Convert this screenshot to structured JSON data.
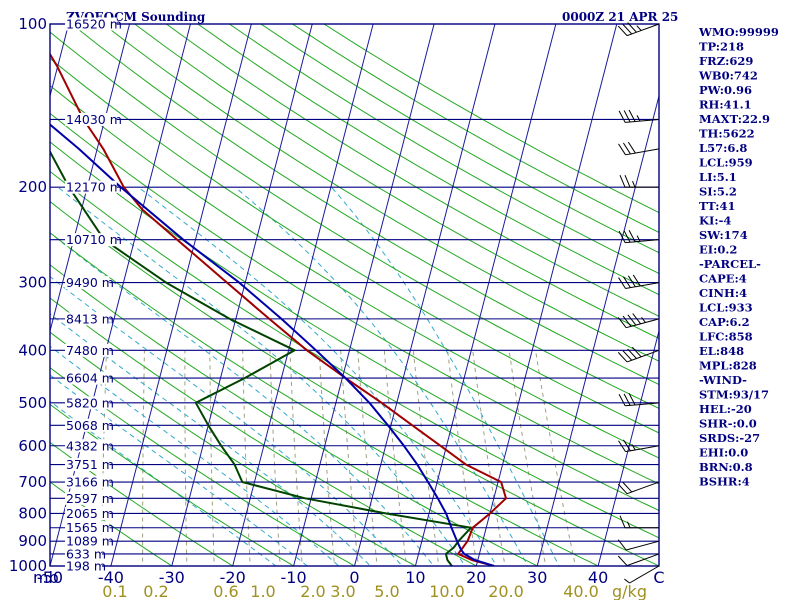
{
  "title_left": "ZVQEQCM Sounding",
  "title_right": "0000Z 21 APR 25",
  "mb_label": "mb",
  "gkg_label": "g/kg",
  "colors": {
    "frame": "#000080",
    "isobar": "#000080",
    "isotherm": "#1a1a9a",
    "dry_adiabat": "#22aa22",
    "moist_adiabat": "#33aacc",
    "mixing_ratio": "#a0a080",
    "temperature": "#a00000",
    "dewpoint": "#004400",
    "parcel": "#0000aa",
    "wind_barb": "#000000",
    "label_text": "#000080",
    "mixing_label_text": "#a09020"
  },
  "indices": [
    "WMO:99999",
    "TP:218",
    "FRZ:629",
    "WB0:742",
    "PW:0.96",
    "RH:41.1",
    "MAXT:22.9",
    "TH:5622",
    "L57:6.8",
    "LCL:959",
    "LI:5.1",
    "SI:5.2",
    "TT:41",
    "KI:-4",
    "SW:174",
    "EI:0.2",
    "-PARCEL-",
    "CAPE:4",
    "CINH:4",
    "LCL:933",
    "CAP:6.2",
    "LFC:858",
    "EL:848",
    "MPL:828",
    "-WIND-",
    "STM:93/17",
    "HEL:-20",
    "SHR-:0.0",
    "SRDS:-27",
    "EHI:0.0",
    "BRN:0.8",
    "BSHR:4"
  ],
  "chart_data": {
    "type": "line",
    "diagram": "skew-T log-P",
    "xlim": [
      -50,
      50
    ],
    "ylim": [
      1000,
      100
    ],
    "y_scale": "log",
    "pressure_ticks": [
      100,
      200,
      300,
      400,
      500,
      600,
      700,
      800,
      900,
      1000
    ],
    "temperature_ticks": [
      -50,
      -40,
      -30,
      -20,
      -10,
      0,
      10,
      20,
      30,
      40
    ],
    "temperature_tick_labels": [
      "-50",
      "-40",
      "-30",
      "-20",
      "-10",
      "0",
      "10",
      "20",
      "30",
      "40",
      "C"
    ],
    "mixing_ratio_labels": [
      "0.1",
      "0.2",
      "0.6",
      "1.0",
      "2.0",
      "3.0",
      "5.0",
      "10.0",
      "20.0",
      "40.0"
    ],
    "height_labels": [
      {
        "p": 100,
        "label": "16520 m"
      },
      {
        "p": 150,
        "label": "14030 m"
      },
      {
        "p": 200,
        "label": "12170 m"
      },
      {
        "p": 250,
        "label": "10710 m"
      },
      {
        "p": 300,
        "label": "9490 m"
      },
      {
        "p": 350,
        "label": "8413 m"
      },
      {
        "p": 400,
        "label": "7480 m"
      },
      {
        "p": 450,
        "label": "6604 m"
      },
      {
        "p": 500,
        "label": "5820 m"
      },
      {
        "p": 550,
        "label": "5068 m"
      },
      {
        "p": 600,
        "label": "4382 m"
      },
      {
        "p": 650,
        "label": "3751 m"
      },
      {
        "p": 700,
        "label": "3166 m"
      },
      {
        "p": 750,
        "label": "2597 m"
      },
      {
        "p": 800,
        "label": "2065 m"
      },
      {
        "p": 850,
        "label": "1565 m"
      },
      {
        "p": 900,
        "label": "1089 m"
      },
      {
        "p": 950,
        "label": "633 m"
      },
      {
        "p": 1000,
        "label": "198 m"
      }
    ],
    "series": [
      {
        "key": "temperature",
        "points": [
          [
            1000,
            22.9
          ],
          [
            975,
            19
          ],
          [
            950,
            16.5
          ],
          [
            925,
            17
          ],
          [
            900,
            17.5
          ],
          [
            850,
            17.8
          ],
          [
            800,
            20
          ],
          [
            750,
            22
          ],
          [
            700,
            20.5
          ],
          [
            650,
            14
          ],
          [
            600,
            9
          ],
          [
            550,
            3.5
          ],
          [
            500,
            -2.5
          ],
          [
            450,
            -9.5
          ],
          [
            400,
            -17
          ],
          [
            350,
            -24.5
          ],
          [
            300,
            -33
          ],
          [
            250,
            -43
          ],
          [
            220,
            -50
          ],
          [
            200,
            -54
          ],
          [
            170,
            -59
          ],
          [
            150,
            -63.5
          ],
          [
            120,
            -70
          ],
          [
            100,
            -76
          ]
        ]
      },
      {
        "key": "dewpoint",
        "points": [
          [
            1000,
            16
          ],
          [
            975,
            15
          ],
          [
            950,
            14.5
          ],
          [
            925,
            15.5
          ],
          [
            900,
            16
          ],
          [
            850,
            17.5
          ],
          [
            800,
            3
          ],
          [
            750,
            -11
          ],
          [
            700,
            -22
          ],
          [
            650,
            -24
          ],
          [
            600,
            -27
          ],
          [
            550,
            -30
          ],
          [
            500,
            -33
          ],
          [
            450,
            -26
          ],
          [
            400,
            -19
          ],
          [
            350,
            -31
          ],
          [
            300,
            -43
          ],
          [
            250,
            -55
          ],
          [
            200,
            -63
          ],
          [
            170,
            -68
          ],
          [
            150,
            -72
          ],
          [
            120,
            -76
          ],
          [
            100,
            -82
          ]
        ]
      },
      {
        "key": "parcel",
        "points": [
          [
            1000,
            22.9
          ],
          [
            975,
            19.5
          ],
          [
            950,
            17.5
          ],
          [
            933,
            16.8
          ],
          [
            900,
            15.8
          ],
          [
            850,
            14.3
          ],
          [
            800,
            12.8
          ],
          [
            750,
            10.8
          ],
          [
            700,
            8.5
          ],
          [
            650,
            6
          ],
          [
            600,
            3
          ],
          [
            550,
            -0.5
          ],
          [
            500,
            -4.5
          ],
          [
            450,
            -9.5
          ],
          [
            400,
            -15.5
          ],
          [
            350,
            -22.5
          ],
          [
            300,
            -31
          ],
          [
            250,
            -42
          ],
          [
            200,
            -54.5
          ],
          [
            170,
            -63
          ],
          [
            150,
            -70
          ],
          [
            120,
            -80
          ],
          [
            110,
            -84
          ]
        ]
      }
    ],
    "wind_barbs": [
      {
        "p": 1000,
        "dir": 240,
        "spd": 5
      },
      {
        "p": 950,
        "dir": 250,
        "spd": 10
      },
      {
        "p": 900,
        "dir": 255,
        "spd": 12
      },
      {
        "p": 850,
        "dir": 270,
        "spd": 15
      },
      {
        "p": 700,
        "dir": 250,
        "spd": 20
      },
      {
        "p": 600,
        "dir": 260,
        "spd": 25
      },
      {
        "p": 500,
        "dir": 265,
        "spd": 30
      },
      {
        "p": 400,
        "dir": 250,
        "spd": 40
      },
      {
        "p": 350,
        "dir": 255,
        "spd": 45
      },
      {
        "p": 300,
        "dir": 260,
        "spd": 40
      },
      {
        "p": 250,
        "dir": 265,
        "spd": 35
      },
      {
        "p": 200,
        "dir": 270,
        "spd": 25
      },
      {
        "p": 170,
        "dir": 260,
        "spd": 30
      },
      {
        "p": 150,
        "dir": 265,
        "spd": 35
      },
      {
        "p": 100,
        "dir": 250,
        "spd": 35
      }
    ]
  }
}
